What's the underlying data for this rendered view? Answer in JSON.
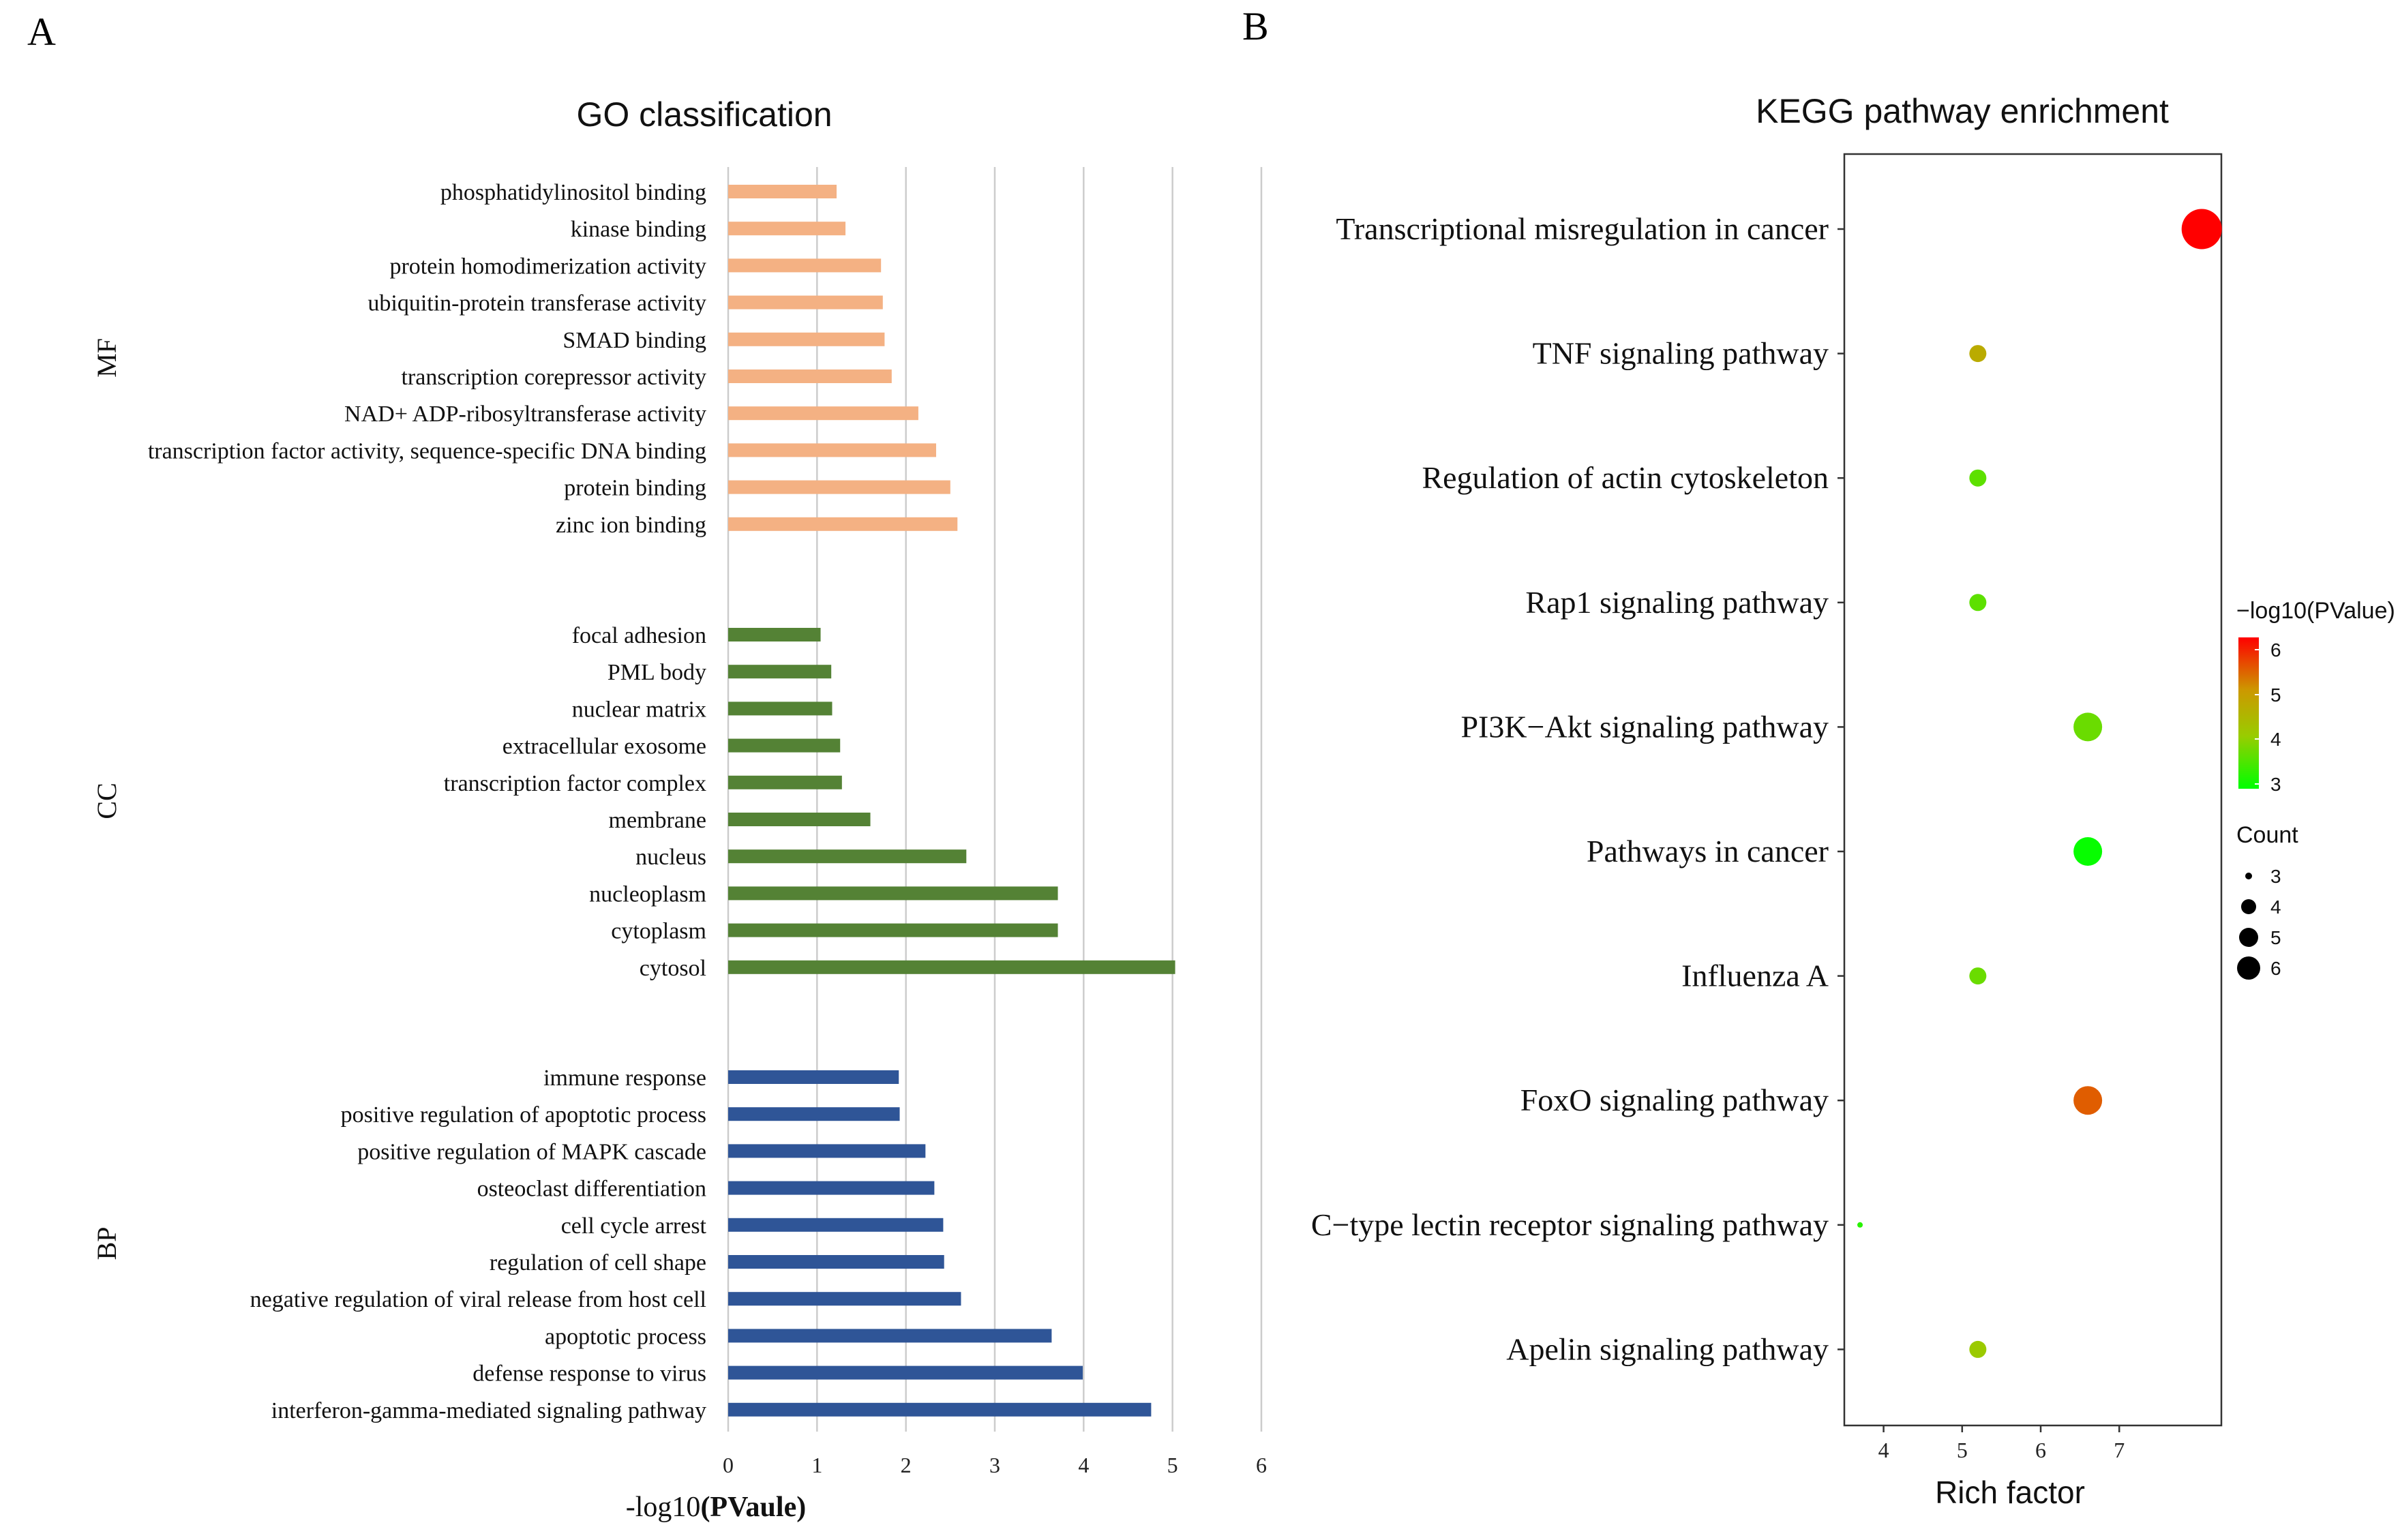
{
  "panel_a_letter": "A",
  "panel_b_letter": "B",
  "chart_data": [
    {
      "type": "bar",
      "orientation": "horizontal",
      "title": "GO classification",
      "xlabel_prefix": "-log10",
      "xlabel_bold": "(PVaule)",
      "xlim": [
        0,
        6
      ],
      "xticks": [
        "0",
        "1",
        "2",
        "3",
        "4",
        "5",
        "6"
      ],
      "grid": true,
      "groups": [
        {
          "name": "MF",
          "color": "#F4B183",
          "categories": [
            "phosphatidylinositol binding",
            "kinase binding",
            "protein homodimerization activity",
            "ubiquitin-protein transferase activity",
            "SMAD binding",
            "transcription corepressor activity",
            "NAD+ ADP-ribosyltransferase activity",
            "transcription factor activity, sequence-specific DNA binding",
            "protein binding",
            "zinc ion binding"
          ],
          "values": [
            1.22,
            1.32,
            1.72,
            1.74,
            1.76,
            1.84,
            2.14,
            2.34,
            2.5,
            2.58
          ]
        },
        {
          "name": "CC",
          "color": "#548235",
          "categories": [
            "focal adhesion",
            "PML body",
            "nuclear matrix",
            "extracellular exosome",
            "transcription factor complex",
            "membrane",
            "nucleus",
            "nucleoplasm",
            "cytoplasm",
            "cytosol"
          ],
          "values": [
            1.04,
            1.16,
            1.17,
            1.26,
            1.28,
            1.6,
            2.68,
            3.71,
            3.71,
            5.03
          ]
        },
        {
          "name": "BP",
          "color": "#2F5597",
          "categories": [
            "immune response",
            "positive regulation of apoptotic process",
            "positive regulation of MAPK cascade",
            "osteoclast differentiation",
            "cell cycle arrest",
            "regulation of cell shape",
            "negative regulation of viral release from host cell",
            "apoptotic process",
            "defense response to virus",
            "interferon-gamma-mediated signaling pathway"
          ],
          "values": [
            1.92,
            1.93,
            2.22,
            2.32,
            2.42,
            2.43,
            2.62,
            3.64,
            3.99,
            4.76
          ]
        }
      ]
    },
    {
      "type": "scatter",
      "title": "KEGG pathway enrichment",
      "xlabel": "Rich factor",
      "xlim": [
        3.5,
        8.3
      ],
      "xticks": [
        4,
        5,
        6,
        7
      ],
      "grid": false,
      "categories": [
        "Transcriptional misregulation in cancer",
        "TNF signaling pathway",
        "Regulation of actin cytoskeleton",
        "Rap1 signaling pathway",
        "PI3K−Akt signaling pathway",
        "Pathways in cancer",
        "Influenza A",
        "FoxO signaling pathway",
        "C−type lectin receptor signaling pathway",
        "Apelin signaling pathway"
      ],
      "rich_factor": [
        8.05,
        5.2,
        5.2,
        5.2,
        6.6,
        6.6,
        5.2,
        6.6,
        3.7,
        5.2
      ],
      "count": [
        6,
        4,
        4,
        4,
        5,
        5,
        4,
        5,
        3,
        4
      ],
      "neg_log10_pvalue": [
        6.3,
        4.8,
        3.7,
        3.7,
        3.8,
        3.05,
        3.8,
        5.6,
        3.3,
        4.2
      ],
      "color_legend": {
        "title": "−log10(PValue)",
        "ticks": [
          "6",
          "5",
          "4",
          "3"
        ],
        "low_color": "#00FF00",
        "high_color": "#FF0000"
      },
      "size_legend": {
        "title": "Count",
        "values": [
          "3",
          "4",
          "5",
          "6"
        ]
      }
    }
  ]
}
